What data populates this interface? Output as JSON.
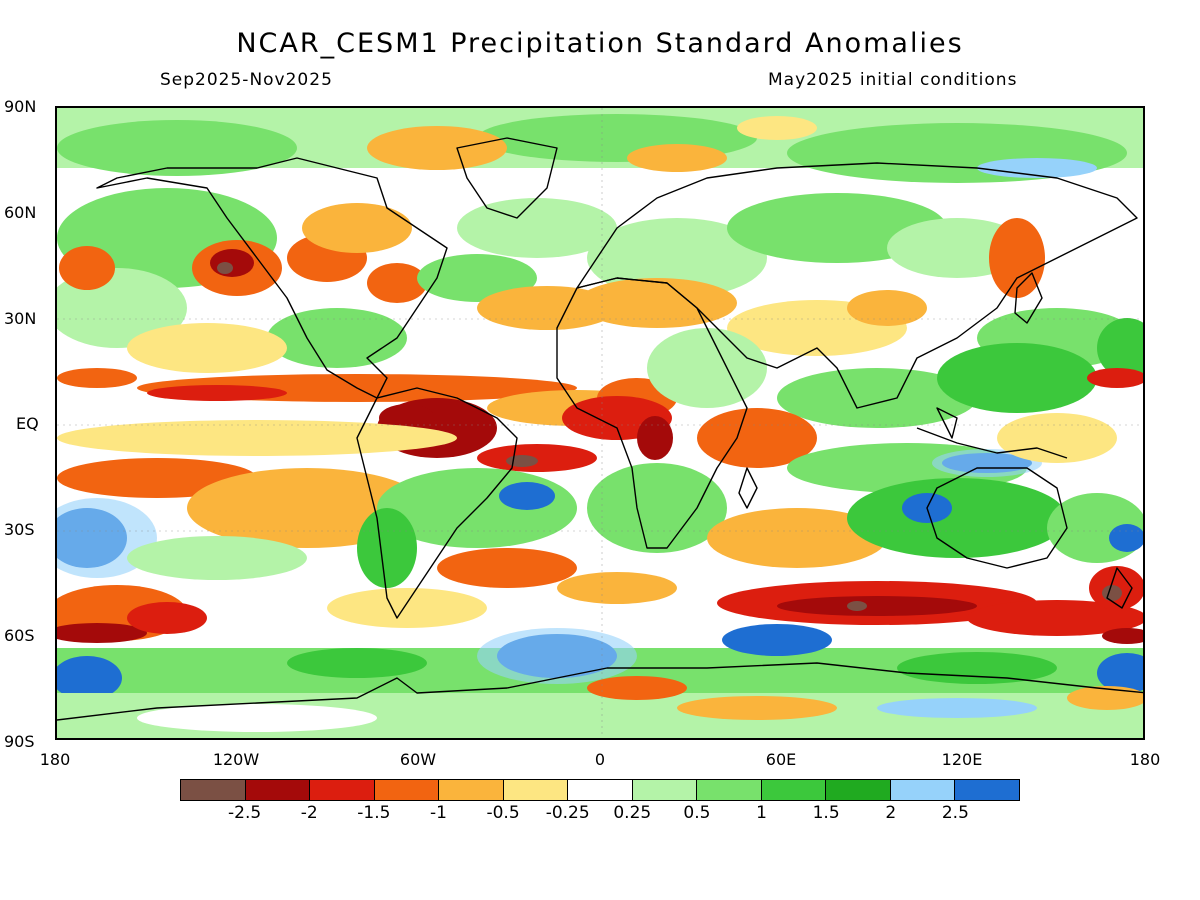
{
  "title": "NCAR_CESM1 Precipitation Standard Anomalies",
  "period": "Sep2025-Nov2025",
  "init": "May2025 initial conditions",
  "lat_labels": [
    "90N",
    "60N",
    "30N",
    "EQ",
    "30S",
    "60S",
    "90S"
  ],
  "lon_labels": [
    "180",
    "120W",
    "60W",
    "0",
    "60E",
    "120E",
    "180"
  ],
  "legend": {
    "colors": [
      "#7b5044",
      "#a40a0a",
      "#dc1e0f",
      "#f26411",
      "#fab43c",
      "#fde682",
      "#ffffff",
      "#b4f3a8",
      "#78e16c",
      "#3cc83c",
      "#20aa20",
      "#96d2fa",
      "#1e6ed2"
    ],
    "labels": [
      "-2.5",
      "-2",
      "-1.5",
      "-1",
      "-0.5",
      "-0.25",
      "0.25",
      "0.5",
      "1",
      "1.5",
      "2",
      "2.5"
    ]
  }
}
